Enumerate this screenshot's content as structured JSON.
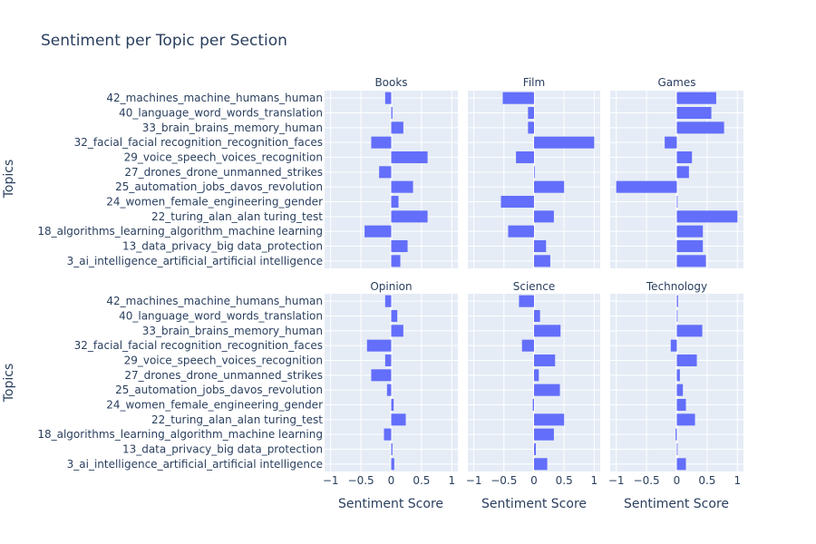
{
  "chart_data": {
    "type": "bar",
    "orientation": "horizontal",
    "title": "Sentiment per Topic per Section",
    "xlabel": "Sentiment Score",
    "ylabel": "Topics",
    "xlim": [
      -1.1,
      1.1
    ],
    "xticks": [
      "−1",
      "−0.5",
      "0",
      "0.5",
      "1"
    ],
    "xtick_values": [
      -1,
      -0.5,
      0,
      0.5,
      1
    ],
    "grid": true,
    "bar_color": "#636efa",
    "plot_bg_color": "#e5ecf6",
    "categories": [
      "42_machines_machine_humans_human",
      "40_language_word_words_translation",
      "33_brain_brains_memory_human",
      "32_facial_facial recognition_recognition_faces",
      "29_voice_speech_voices_recognition",
      "27_drones_drone_unmanned_strikes",
      "25_automation_jobs_davos_revolution",
      "24_women_female_engineering_gender",
      "22_turing_alan_alan turing_test",
      "18_algorithms_learning_algorithm_machine learning",
      "13_data_privacy_big data_protection",
      "3_ai_intelligence_artificial_artificial intelligence"
    ],
    "facets": [
      {
        "name": "Books",
        "values": [
          -0.1,
          0.02,
          0.2,
          -0.33,
          0.6,
          -0.2,
          0.36,
          0.12,
          0.6,
          -0.44,
          0.27,
          0.15
        ]
      },
      {
        "name": "Film",
        "values": [
          -0.52,
          -0.1,
          -0.1,
          1.0,
          -0.3,
          0.0,
          0.5,
          -0.55,
          0.33,
          -0.43,
          0.2,
          0.27
        ]
      },
      {
        "name": "Games",
        "values": [
          0.65,
          0.57,
          0.78,
          -0.2,
          0.25,
          0.2,
          -1.0,
          0.0,
          1.0,
          0.43,
          0.43,
          0.48
        ]
      },
      {
        "name": "Opinion",
        "values": [
          -0.1,
          0.1,
          0.2,
          -0.4,
          -0.1,
          -0.33,
          -0.07,
          0.04,
          0.24,
          -0.12,
          0.02,
          0.05
        ]
      },
      {
        "name": "Science",
        "values": [
          -0.25,
          0.1,
          0.44,
          -0.2,
          0.35,
          0.08,
          0.43,
          -0.02,
          0.5,
          0.33,
          0.03,
          0.22
        ]
      },
      {
        "name": "Technology",
        "values": [
          0.02,
          0.0,
          0.42,
          -0.1,
          0.33,
          0.05,
          0.1,
          0.15,
          0.3,
          -0.02,
          0.0,
          0.15
        ]
      }
    ]
  }
}
